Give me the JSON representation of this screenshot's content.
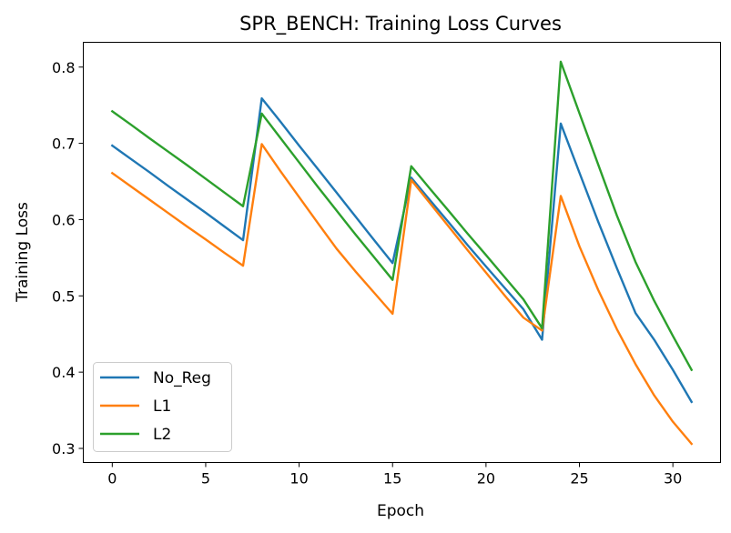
{
  "chart_data": {
    "type": "line",
    "title": "SPR_BENCH: Training Loss Curves",
    "xlabel": "Epoch",
    "ylabel": "Training Loss",
    "xlim": [
      -1.55,
      32.55
    ],
    "ylim": [
      0.2815,
      0.8325
    ],
    "xticks": [
      0,
      5,
      10,
      15,
      20,
      25,
      30
    ],
    "xtick_labels": [
      "0",
      "5",
      "10",
      "15",
      "20",
      "25",
      "30"
    ],
    "yticks": [
      0.3,
      0.4,
      0.5,
      0.6,
      0.7,
      0.8
    ],
    "ytick_labels": [
      "0.3",
      "0.4",
      "0.5",
      "0.6",
      "0.7",
      "0.8"
    ],
    "grid": false,
    "legend_position": "lower-left",
    "x": [
      0,
      1,
      2,
      3,
      4,
      5,
      6,
      7,
      8,
      9,
      10,
      11,
      12,
      13,
      14,
      15,
      16,
      17,
      18,
      19,
      20,
      21,
      22,
      23,
      24,
      25,
      26,
      27,
      28,
      29,
      30,
      31
    ],
    "series": [
      {
        "name": "No_Reg",
        "color": "#1f77b4",
        "values": [
          0.697,
          0.6795,
          0.662,
          0.644,
          0.6265,
          0.609,
          0.591,
          0.573,
          0.759,
          0.7285,
          0.697,
          0.6665,
          0.6355,
          0.6045,
          0.5735,
          0.543,
          0.655,
          0.6255,
          0.5965,
          0.567,
          0.5385,
          0.5105,
          0.4825,
          0.4425,
          0.726,
          0.6615,
          0.5975,
          0.5365,
          0.4775,
          0.4425,
          0.403,
          0.361
        ]
      },
      {
        "name": "L1",
        "color": "#ff7f0e",
        "values": [
          0.661,
          0.6435,
          0.626,
          0.6085,
          0.591,
          0.574,
          0.5565,
          0.5395,
          0.699,
          0.6635,
          0.6295,
          0.5955,
          0.562,
          0.5325,
          0.5045,
          0.4765,
          0.652,
          0.6215,
          0.591,
          0.5605,
          0.5305,
          0.5005,
          0.4715,
          0.4545,
          0.631,
          0.565,
          0.508,
          0.4565,
          0.4105,
          0.3695,
          0.335,
          0.306
        ]
      },
      {
        "name": "L2",
        "color": "#2ca02c",
        "values": [
          0.742,
          0.7245,
          0.7065,
          0.689,
          0.6715,
          0.6535,
          0.6355,
          0.6175,
          0.739,
          0.707,
          0.675,
          0.643,
          0.612,
          0.581,
          0.551,
          0.521,
          0.67,
          0.6405,
          0.6115,
          0.582,
          0.5535,
          0.5245,
          0.4955,
          0.4575,
          0.807,
          0.7395,
          0.6725,
          0.6055,
          0.5445,
          0.4935,
          0.4475,
          0.403
        ]
      }
    ]
  }
}
